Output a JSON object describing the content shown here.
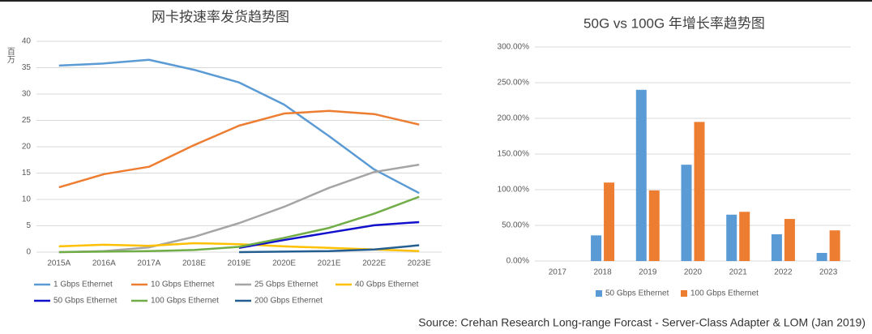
{
  "chart_data": [
    {
      "type": "line",
      "title": "网卡按速率发货趋势图",
      "y_label": "百万",
      "categories": [
        "2015A",
        "2016A",
        "2017A",
        "2018E",
        "2019E",
        "2020E",
        "2021E",
        "2022E",
        "2023E"
      ],
      "ylim": [
        0,
        40
      ],
      "yticks": [
        0,
        5,
        10,
        15,
        20,
        25,
        30,
        35,
        40
      ],
      "grid": true,
      "legend": "bottom",
      "series": [
        {
          "name": "1 Gbps Ethernet",
          "color": "#5b9bd5",
          "values": [
            35.4,
            35.8,
            36.5,
            34.6,
            32.2,
            28,
            22,
            15.7,
            11.2
          ]
        },
        {
          "name": "10 Gbps Ethernet",
          "color": "#ed7d31",
          "values": [
            12.3,
            14.8,
            16.2,
            20.3,
            24,
            26.3,
            26.8,
            26.2,
            24.2
          ]
        },
        {
          "name": "25 Gbps Ethernet",
          "color": "#a5a5a5",
          "values": [
            0,
            0.2,
            0.9,
            2.9,
            5.5,
            8.6,
            12.2,
            15.2,
            16.6
          ]
        },
        {
          "name": "40 Gbps Ethernet",
          "color": "#ffc000",
          "values": [
            1.1,
            1.4,
            1.2,
            1.7,
            1.5,
            1.1,
            0.8,
            0.5,
            0.2
          ]
        },
        {
          "name": "50 Gbps Ethernet",
          "color": "#1010cc",
          "values": [
            null,
            null,
            null,
            null,
            0.8,
            2.3,
            3.7,
            5.1,
            5.7
          ]
        },
        {
          "name": "100 Gbps Ethernet",
          "color": "#70ad47",
          "values": [
            0,
            0.1,
            0.2,
            0.4,
            1.0,
            2.7,
            4.6,
            7.3,
            10.5
          ]
        },
        {
          "name": "200 Gbps Ethernet",
          "color": "#255e91",
          "values": [
            null,
            null,
            null,
            null,
            0,
            0.1,
            0.2,
            0.5,
            1.3
          ]
        }
      ]
    },
    {
      "type": "bar",
      "title": "50G vs 100G 年增长率趋势图",
      "categories": [
        "2017",
        "2018",
        "2019",
        "2020",
        "2021",
        "2022",
        "2023"
      ],
      "ylim": [
        0,
        300
      ],
      "yticks": [
        {
          "value": 0,
          "label": "0.00%"
        },
        {
          "value": 50,
          "label": "50.00%"
        },
        {
          "value": 100,
          "label": "100.00%"
        },
        {
          "value": 150,
          "label": "150.00%"
        },
        {
          "value": 200,
          "label": "200.00%"
        },
        {
          "value": 250,
          "label": "250.00%"
        },
        {
          "value": 300,
          "label": "300.00%"
        }
      ],
      "grid": true,
      "legend": "bottom",
      "series": [
        {
          "name": "50 Gbps Ethernet",
          "color": "#5b9bd5",
          "values": [
            null,
            36,
            240,
            135,
            65,
            37.5,
            11.4
          ]
        },
        {
          "name": "100 Gbps Ethernet",
          "color": "#ed7d31",
          "values": [
            null,
            110,
            99,
            195,
            69,
            59,
            43
          ]
        }
      ]
    }
  ],
  "source": "Source: Crehan Research Long-range Forcast - Server-Class Adapter & LOM (Jan 2019)"
}
